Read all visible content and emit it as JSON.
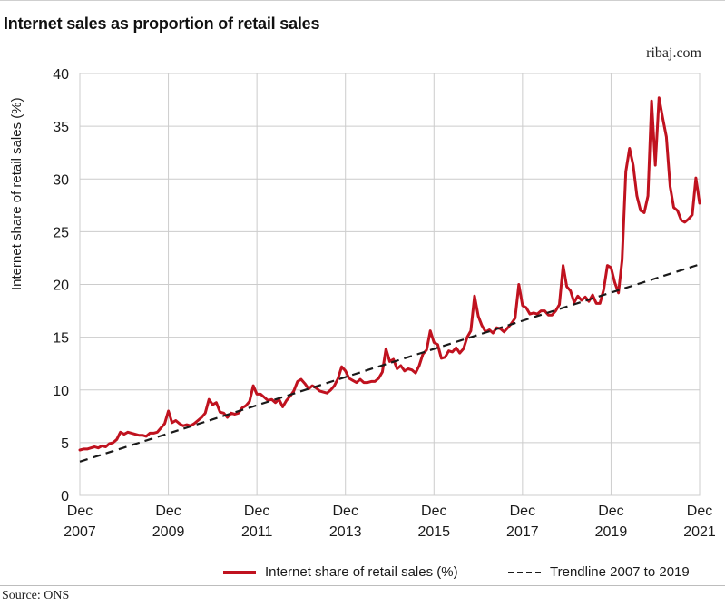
{
  "page": {
    "title": "Internet sales as proportion of retail sales",
    "brand": "ribaj.com",
    "source": "Source: ONS"
  },
  "colors": {
    "series": "#c0121f",
    "trend": "#1a1a1a",
    "grid": "#cccccc"
  },
  "chart_data": {
    "type": "line",
    "title": "Internet sales as proportion of retail sales",
    "ylabel": "Internet share of retail sales (%)",
    "xlabel": "",
    "ylim": [
      0,
      40
    ],
    "yticks": [
      0,
      5,
      10,
      15,
      20,
      25,
      30,
      35,
      40
    ],
    "xlim": [
      "2007-12",
      "2021-12"
    ],
    "xticks": [
      {
        "value": "2007-12",
        "label": [
          "Dec",
          "2007"
        ]
      },
      {
        "value": "2009-12",
        "label": [
          "Dec",
          "2009"
        ]
      },
      {
        "value": "2011-12",
        "label": [
          "Dec",
          "2011"
        ]
      },
      {
        "value": "2013-12",
        "label": [
          "Dec",
          "2013"
        ]
      },
      {
        "value": "2015-12",
        "label": [
          "Dec",
          "2015"
        ]
      },
      {
        "value": "2017-12",
        "label": [
          "Dec",
          "2017"
        ]
      },
      {
        "value": "2019-12",
        "label": [
          "Dec",
          "2019"
        ]
      },
      {
        "value": "2021-12",
        "label": [
          "Dec",
          "2021"
        ]
      }
    ],
    "grid": true,
    "legend_position": "bottom",
    "series": [
      {
        "name": "Internet share of retail sales (%)",
        "style": "solid",
        "points": [
          [
            "2007-12",
            4.3
          ],
          [
            "2008-01",
            4.4
          ],
          [
            "2008-02",
            4.4
          ],
          [
            "2008-03",
            4.5
          ],
          [
            "2008-04",
            4.6
          ],
          [
            "2008-05",
            4.5
          ],
          [
            "2008-06",
            4.7
          ],
          [
            "2008-07",
            4.6
          ],
          [
            "2008-08",
            4.9
          ],
          [
            "2008-09",
            5.0
          ],
          [
            "2008-10",
            5.3
          ],
          [
            "2008-11",
            6.0
          ],
          [
            "2008-12",
            5.8
          ],
          [
            "2009-01",
            6.0
          ],
          [
            "2009-02",
            5.9
          ],
          [
            "2009-03",
            5.8
          ],
          [
            "2009-04",
            5.7
          ],
          [
            "2009-05",
            5.7
          ],
          [
            "2009-06",
            5.6
          ],
          [
            "2009-07",
            5.9
          ],
          [
            "2009-08",
            5.9
          ],
          [
            "2009-09",
            6.0
          ],
          [
            "2009-10",
            6.4
          ],
          [
            "2009-11",
            6.8
          ],
          [
            "2009-12",
            8.0
          ],
          [
            "2010-01",
            6.9
          ],
          [
            "2010-02",
            7.1
          ],
          [
            "2010-03",
            6.8
          ],
          [
            "2010-04",
            6.6
          ],
          [
            "2010-05",
            6.7
          ],
          [
            "2010-06",
            6.6
          ],
          [
            "2010-07",
            6.8
          ],
          [
            "2010-08",
            7.1
          ],
          [
            "2010-09",
            7.4
          ],
          [
            "2010-10",
            7.8
          ],
          [
            "2010-11",
            9.1
          ],
          [
            "2010-12",
            8.6
          ],
          [
            "2011-01",
            8.8
          ],
          [
            "2011-02",
            7.9
          ],
          [
            "2011-03",
            7.8
          ],
          [
            "2011-04",
            7.4
          ],
          [
            "2011-05",
            7.8
          ],
          [
            "2011-06",
            7.7
          ],
          [
            "2011-07",
            7.8
          ],
          [
            "2011-08",
            8.3
          ],
          [
            "2011-09",
            8.5
          ],
          [
            "2011-10",
            8.9
          ],
          [
            "2011-11",
            10.4
          ],
          [
            "2011-12",
            9.6
          ],
          [
            "2012-01",
            9.6
          ],
          [
            "2012-02",
            9.3
          ],
          [
            "2012-03",
            9.0
          ],
          [
            "2012-04",
            9.1
          ],
          [
            "2012-05",
            8.8
          ],
          [
            "2012-06",
            9.1
          ],
          [
            "2012-07",
            8.4
          ],
          [
            "2012-08",
            9.0
          ],
          [
            "2012-09",
            9.4
          ],
          [
            "2012-10",
            9.9
          ],
          [
            "2012-11",
            10.8
          ],
          [
            "2012-12",
            11.0
          ],
          [
            "2013-01",
            10.6
          ],
          [
            "2013-02",
            10.1
          ],
          [
            "2013-03",
            10.4
          ],
          [
            "2013-04",
            10.2
          ],
          [
            "2013-05",
            9.9
          ],
          [
            "2013-06",
            9.8
          ],
          [
            "2013-07",
            9.7
          ],
          [
            "2013-08",
            10.0
          ],
          [
            "2013-09",
            10.4
          ],
          [
            "2013-10",
            11.1
          ],
          [
            "2013-11",
            12.2
          ],
          [
            "2013-12",
            11.8
          ],
          [
            "2014-01",
            11.1
          ],
          [
            "2014-02",
            10.9
          ],
          [
            "2014-03",
            10.7
          ],
          [
            "2014-04",
            11.0
          ],
          [
            "2014-05",
            10.7
          ],
          [
            "2014-06",
            10.7
          ],
          [
            "2014-07",
            10.8
          ],
          [
            "2014-08",
            10.8
          ],
          [
            "2014-09",
            11.1
          ],
          [
            "2014-10",
            11.7
          ],
          [
            "2014-11",
            13.9
          ],
          [
            "2014-12",
            12.7
          ],
          [
            "2015-01",
            12.9
          ],
          [
            "2015-02",
            12.0
          ],
          [
            "2015-03",
            12.3
          ],
          [
            "2015-04",
            11.8
          ],
          [
            "2015-05",
            12.0
          ],
          [
            "2015-06",
            11.9
          ],
          [
            "2015-07",
            11.6
          ],
          [
            "2015-08",
            12.3
          ],
          [
            "2015-09",
            13.4
          ],
          [
            "2015-10",
            13.8
          ],
          [
            "2015-11",
            15.6
          ],
          [
            "2015-12",
            14.5
          ],
          [
            "2016-01",
            14.3
          ],
          [
            "2016-02",
            13.0
          ],
          [
            "2016-03",
            13.1
          ],
          [
            "2016-04",
            13.7
          ],
          [
            "2016-05",
            13.6
          ],
          [
            "2016-06",
            14.0
          ],
          [
            "2016-07",
            13.5
          ],
          [
            "2016-08",
            13.9
          ],
          [
            "2016-09",
            15.0
          ],
          [
            "2016-10",
            15.6
          ],
          [
            "2016-11",
            18.9
          ],
          [
            "2016-12",
            17.0
          ],
          [
            "2017-01",
            16.1
          ],
          [
            "2017-02",
            15.5
          ],
          [
            "2017-03",
            15.7
          ],
          [
            "2017-04",
            15.4
          ],
          [
            "2017-05",
            15.9
          ],
          [
            "2017-06",
            15.8
          ],
          [
            "2017-07",
            15.5
          ],
          [
            "2017-08",
            15.9
          ],
          [
            "2017-09",
            16.3
          ],
          [
            "2017-10",
            16.8
          ],
          [
            "2017-11",
            20.0
          ],
          [
            "2017-12",
            18.0
          ],
          [
            "2018-01",
            17.8
          ],
          [
            "2018-02",
            17.2
          ],
          [
            "2018-03",
            17.3
          ],
          [
            "2018-04",
            17.2
          ],
          [
            "2018-05",
            17.5
          ],
          [
            "2018-06",
            17.5
          ],
          [
            "2018-07",
            17.1
          ],
          [
            "2018-08",
            17.1
          ],
          [
            "2018-09",
            17.5
          ],
          [
            "2018-10",
            18.1
          ],
          [
            "2018-11",
            21.8
          ],
          [
            "2018-12",
            19.8
          ],
          [
            "2019-01",
            19.4
          ],
          [
            "2019-02",
            18.3
          ],
          [
            "2019-03",
            18.9
          ],
          [
            "2019-04",
            18.5
          ],
          [
            "2019-05",
            18.8
          ],
          [
            "2019-06",
            18.4
          ],
          [
            "2019-07",
            19.0
          ],
          [
            "2019-08",
            18.2
          ],
          [
            "2019-09",
            18.2
          ],
          [
            "2019-10",
            19.5
          ],
          [
            "2019-11",
            21.8
          ],
          [
            "2019-12",
            21.6
          ],
          [
            "2020-01",
            20.2
          ],
          [
            "2020-02",
            19.2
          ],
          [
            "2020-03",
            22.3
          ],
          [
            "2020-04",
            30.7
          ],
          [
            "2020-05",
            32.9
          ],
          [
            "2020-06",
            31.3
          ],
          [
            "2020-07",
            28.4
          ],
          [
            "2020-08",
            27.0
          ],
          [
            "2020-09",
            26.8
          ],
          [
            "2020-10",
            28.4
          ],
          [
            "2020-11",
            37.4
          ],
          [
            "2020-12",
            31.3
          ],
          [
            "2021-01",
            37.7
          ],
          [
            "2021-02",
            35.8
          ],
          [
            "2021-03",
            34.0
          ],
          [
            "2021-04",
            29.3
          ],
          [
            "2021-05",
            27.3
          ],
          [
            "2021-06",
            27.0
          ],
          [
            "2021-07",
            26.1
          ],
          [
            "2021-08",
            25.9
          ],
          [
            "2021-09",
            26.2
          ],
          [
            "2021-10",
            26.6
          ],
          [
            "2021-11",
            30.1
          ],
          [
            "2021-12",
            27.7
          ]
        ]
      },
      {
        "name": "Trendline 2007 to 2019",
        "style": "dashed",
        "points": [
          [
            "2007-12",
            3.2
          ],
          [
            "2021-12",
            21.9
          ]
        ]
      }
    ]
  }
}
